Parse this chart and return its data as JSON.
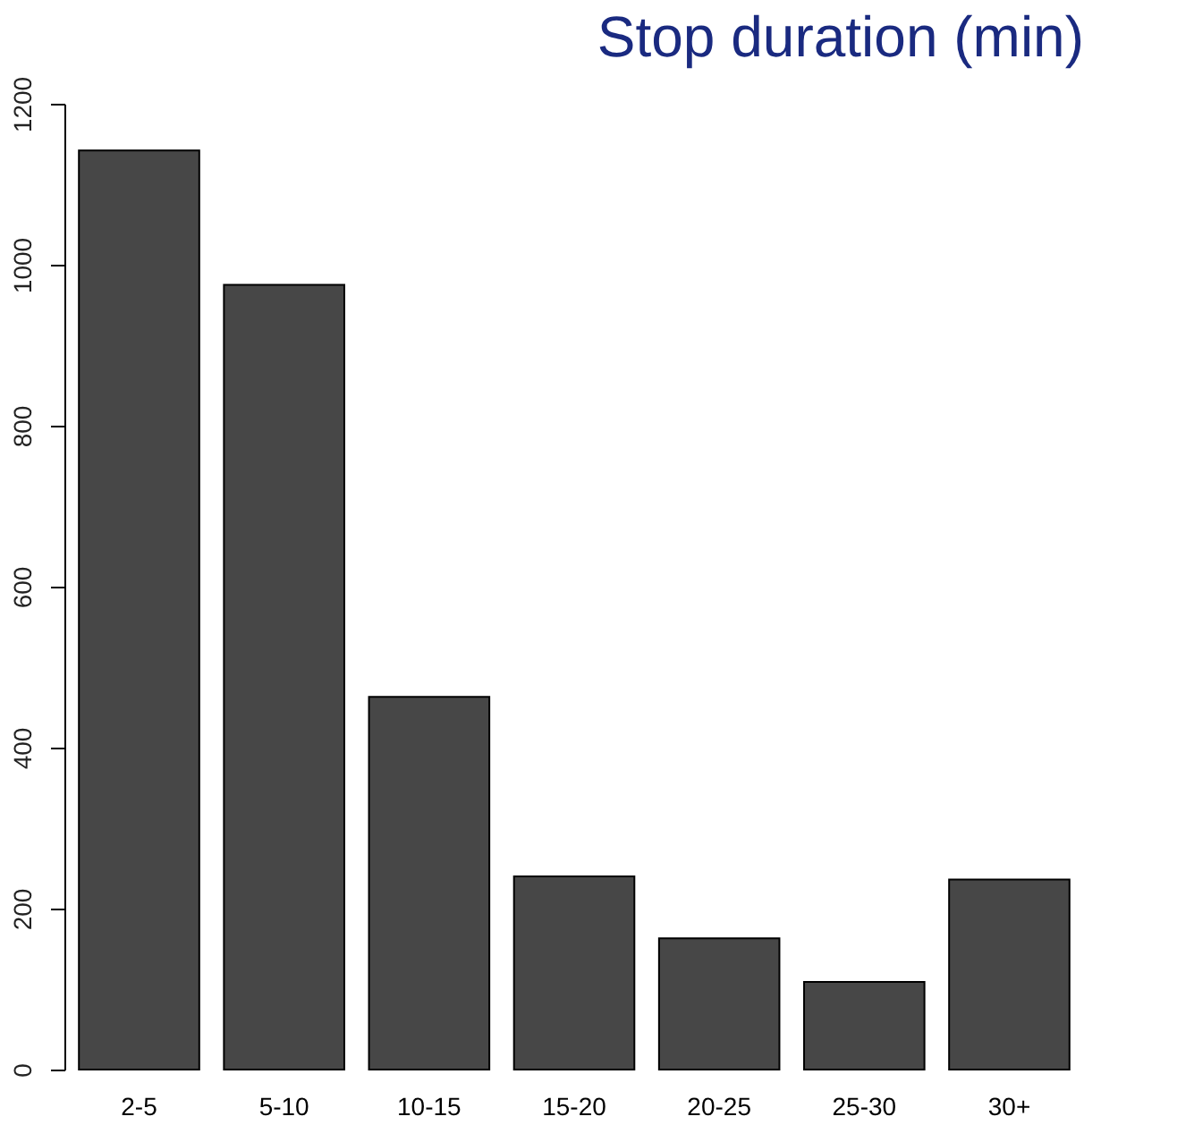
{
  "chart_data": {
    "type": "bar",
    "title": "Stop duration (min)",
    "categories": [
      "2-5",
      "5-10",
      "10-15",
      "15-20",
      "20-25",
      "25-30",
      "30+"
    ],
    "values": [
      1142,
      975,
      463,
      240,
      163,
      109,
      236
    ],
    "color": "#474747",
    "ylim": [
      0,
      1200
    ],
    "yticks": [
      0,
      200,
      400,
      600,
      800,
      1000,
      1200
    ],
    "grid": false
  }
}
